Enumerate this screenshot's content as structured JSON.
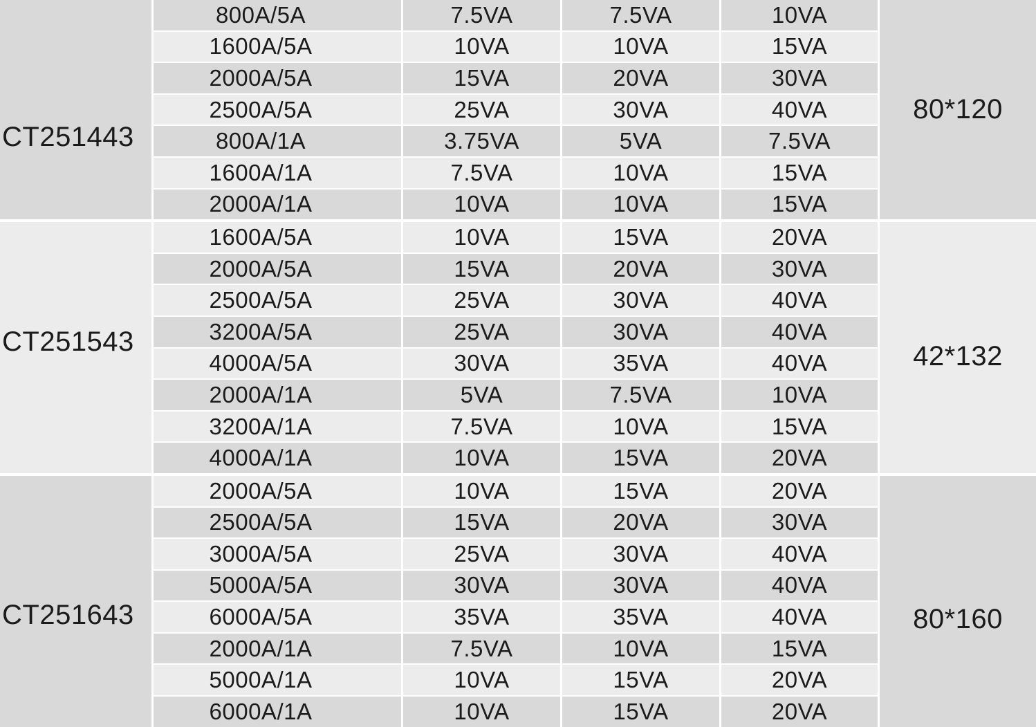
{
  "colors": {
    "row_dark": "#d9d9d9",
    "row_light": "#ececec",
    "grid_line": "#ffffff",
    "text": "#1b1b1b"
  },
  "table": {
    "sections": [
      {
        "model": "CT251443",
        "dimensions": "80*120",
        "rows": [
          {
            "ratio": "800A/5A",
            "va": [
              "7.5VA",
              "7.5VA",
              "10VA"
            ]
          },
          {
            "ratio": "1600A/5A",
            "va": [
              "10VA",
              "10VA",
              "15VA"
            ]
          },
          {
            "ratio": "2000A/5A",
            "va": [
              "15VA",
              "20VA",
              "30VA"
            ]
          },
          {
            "ratio": "2500A/5A",
            "va": [
              "25VA",
              "30VA",
              "40VA"
            ]
          },
          {
            "ratio": "800A/1A",
            "va": [
              "3.75VA",
              "5VA",
              "7.5VA"
            ]
          },
          {
            "ratio": "1600A/1A",
            "va": [
              "7.5VA",
              "10VA",
              "15VA"
            ]
          },
          {
            "ratio": "2000A/1A",
            "va": [
              "10VA",
              "10VA",
              "15VA"
            ]
          }
        ]
      },
      {
        "model": "CT251543",
        "dimensions": "42*132",
        "rows": [
          {
            "ratio": "1600A/5A",
            "va": [
              "10VA",
              "15VA",
              "20VA"
            ]
          },
          {
            "ratio": "2000A/5A",
            "va": [
              "15VA",
              "20VA",
              "30VA"
            ]
          },
          {
            "ratio": "2500A/5A",
            "va": [
              "25VA",
              "30VA",
              "40VA"
            ]
          },
          {
            "ratio": "3200A/5A",
            "va": [
              "25VA",
              "30VA",
              "40VA"
            ]
          },
          {
            "ratio": "4000A/5A",
            "va": [
              "30VA",
              "35VA",
              "40VA"
            ]
          },
          {
            "ratio": "2000A/1A",
            "va": [
              "5VA",
              "7.5VA",
              "10VA"
            ]
          },
          {
            "ratio": "3200A/1A",
            "va": [
              "7.5VA",
              "10VA",
              "15VA"
            ]
          },
          {
            "ratio": "4000A/1A",
            "va": [
              "10VA",
              "15VA",
              "20VA"
            ]
          }
        ]
      },
      {
        "model": "CT251643",
        "dimensions": "80*160",
        "rows": [
          {
            "ratio": "2000A/5A",
            "va": [
              "10VA",
              "15VA",
              "20VA"
            ]
          },
          {
            "ratio": "2500A/5A",
            "va": [
              "15VA",
              "20VA",
              "30VA"
            ]
          },
          {
            "ratio": "3000A/5A",
            "va": [
              "25VA",
              "30VA",
              "40VA"
            ]
          },
          {
            "ratio": "5000A/5A",
            "va": [
              "30VA",
              "30VA",
              "40VA"
            ]
          },
          {
            "ratio": "6000A/5A",
            "va": [
              "35VA",
              "35VA",
              "40VA"
            ]
          },
          {
            "ratio": "2000A/1A",
            "va": [
              "7.5VA",
              "10VA",
              "15VA"
            ]
          },
          {
            "ratio": "5000A/1A",
            "va": [
              "10VA",
              "15VA",
              "20VA"
            ]
          },
          {
            "ratio": "6000A/1A",
            "va": [
              "10VA",
              "15VA",
              "20VA"
            ]
          }
        ]
      }
    ]
  }
}
